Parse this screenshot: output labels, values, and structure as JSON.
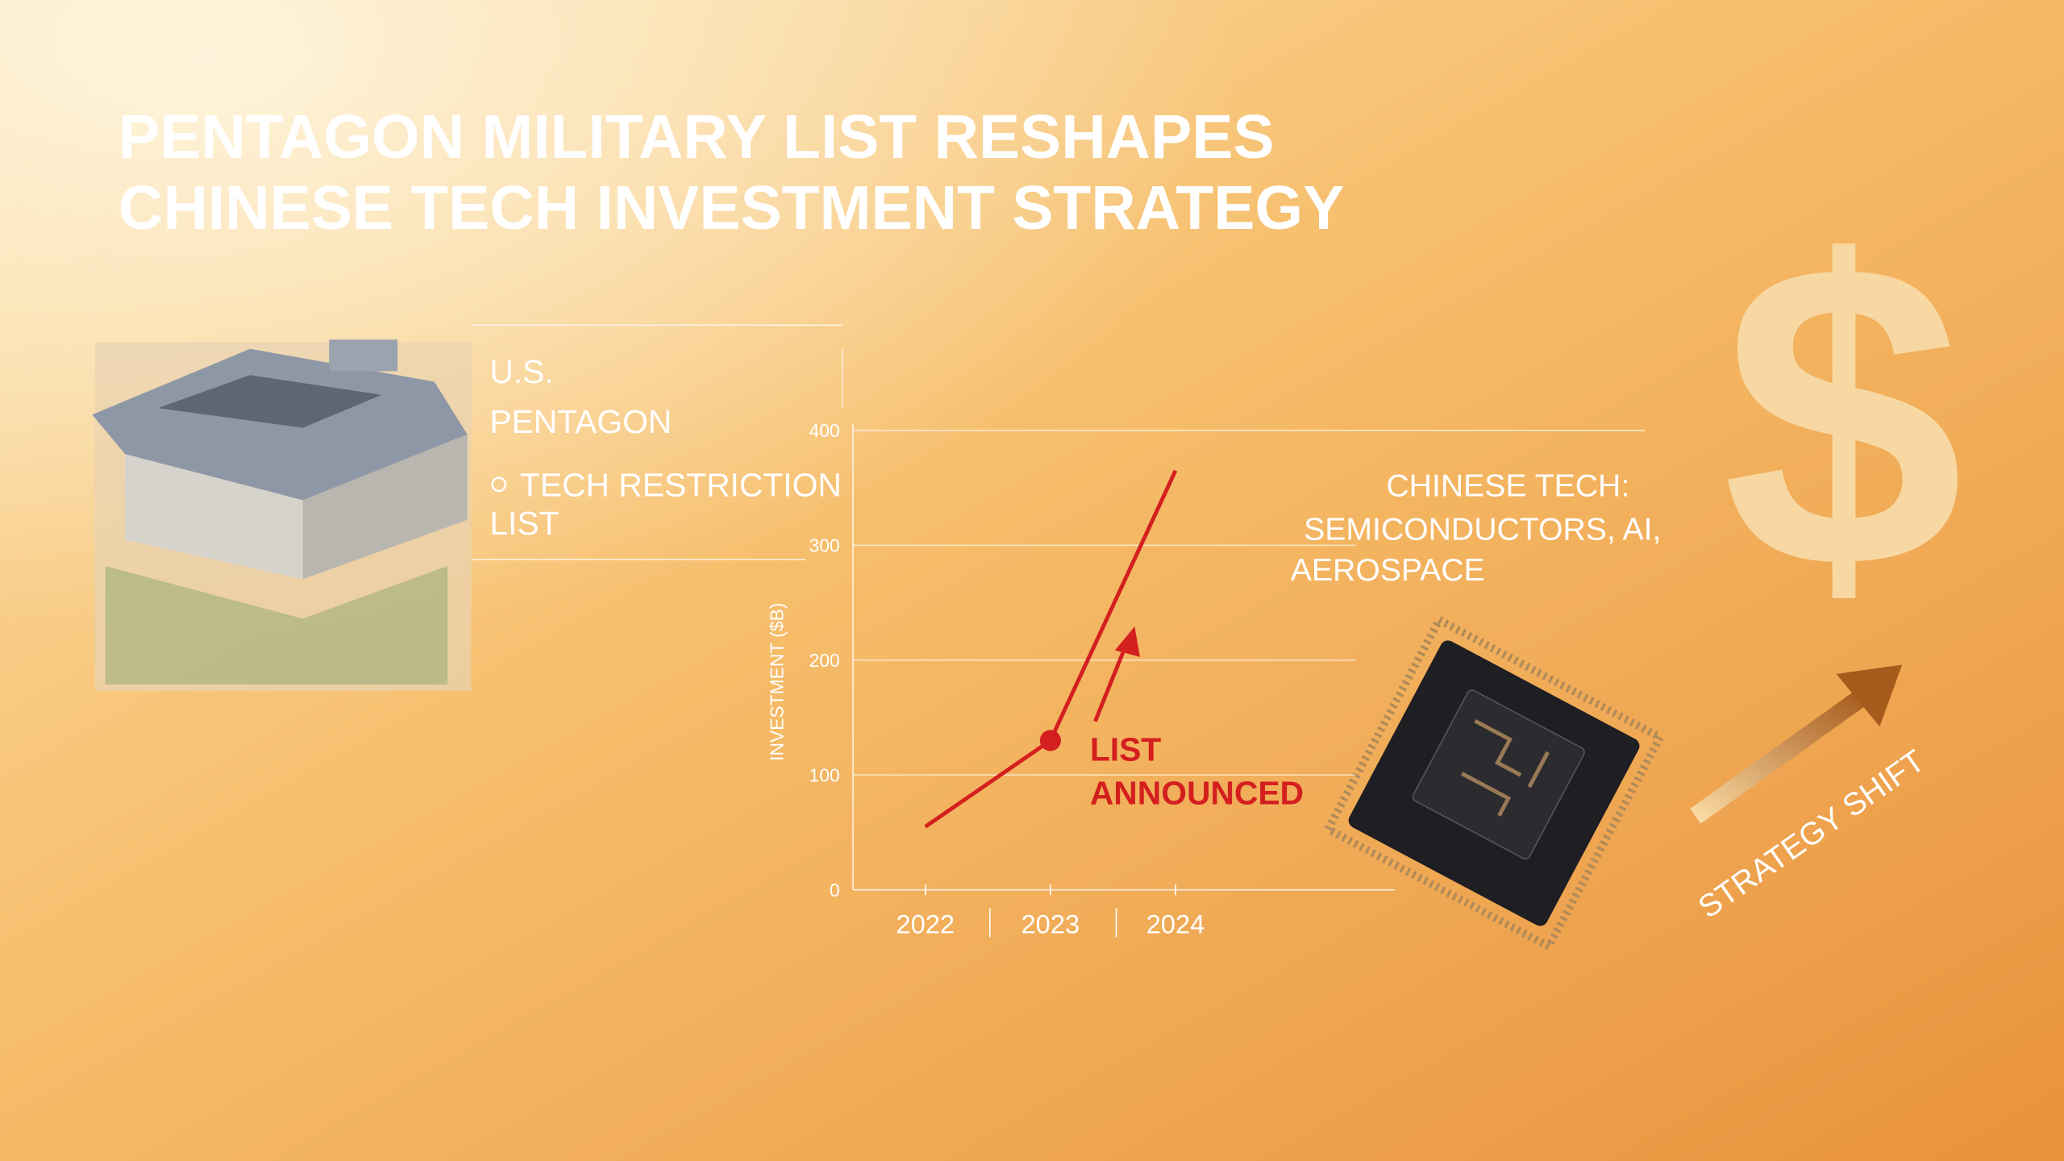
{
  "header": {
    "title_lines": [
      "PENTAGON MILITARY LIST RESHAPES",
      "CHINESE TECH INVESTMENT STRATEGY"
    ]
  },
  "pentagon_panel": {
    "label_lines": [
      "U.S.",
      "PENTAGON"
    ],
    "bullet_lines": [
      "TECH RESTRICTION",
      "LIST"
    ]
  },
  "chip_panel": {
    "label_lines": [
      "CHINESE TECH:",
      "SEMICONDUCTORS, AI,",
      "AEROSPACE"
    ]
  },
  "strategy": {
    "symbol": "$",
    "label": "STRATEGY SHIFT"
  },
  "chart_data": {
    "type": "line",
    "ylabel": "INVESTMENT ($B)",
    "categories": [
      "2022",
      "2023",
      "2024"
    ],
    "series": [
      {
        "color": "#d41f1f",
        "values": [
          55,
          130,
          365
        ]
      }
    ],
    "ylim": [
      0,
      400
    ],
    "yticks": [
      0,
      100,
      200,
      300,
      400
    ],
    "grid": true,
    "annotation_lines": [
      "LIST",
      "ANNOUNCED"
    ]
  }
}
